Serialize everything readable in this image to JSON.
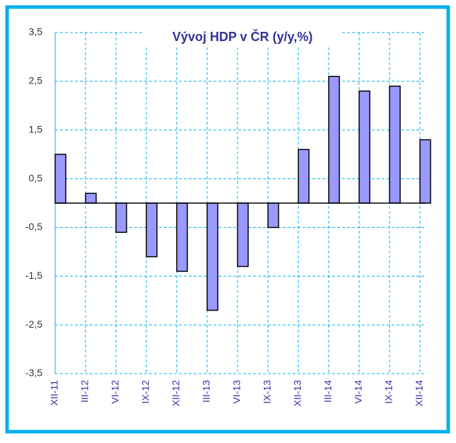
{
  "chart_data": {
    "type": "bar",
    "title": "Vývoj  HDP v ČR (y/y,%)",
    "categories": [
      "XII-11",
      "III-12",
      "VI-12",
      "IX-12",
      "XII-12",
      "III-13",
      "VI-13",
      "IX-13",
      "XII-13",
      "III-14",
      "VI-14",
      "IX-14",
      "XII-14"
    ],
    "values": [
      1.0,
      0.2,
      -0.6,
      -1.1,
      -1.4,
      -2.2,
      -1.3,
      -0.5,
      1.1,
      2.6,
      2.3,
      2.4,
      1.3
    ],
    "color": "#9999ff",
    "ylim": [
      -3.5,
      3.5
    ],
    "yticks": [
      {
        "value": -3.5,
        "label": "-3,5"
      },
      {
        "value": -2.5,
        "label": "-2,5"
      },
      {
        "value": -1.5,
        "label": "-1,5"
      },
      {
        "value": -0.5,
        "label": "-0,5"
      },
      {
        "value": 0.5,
        "label": "0,5"
      },
      {
        "value": 1.5,
        "label": "1,5"
      },
      {
        "value": 2.5,
        "label": "2,5"
      },
      {
        "value": 3.5,
        "label": "3,5"
      }
    ],
    "grid": true
  }
}
